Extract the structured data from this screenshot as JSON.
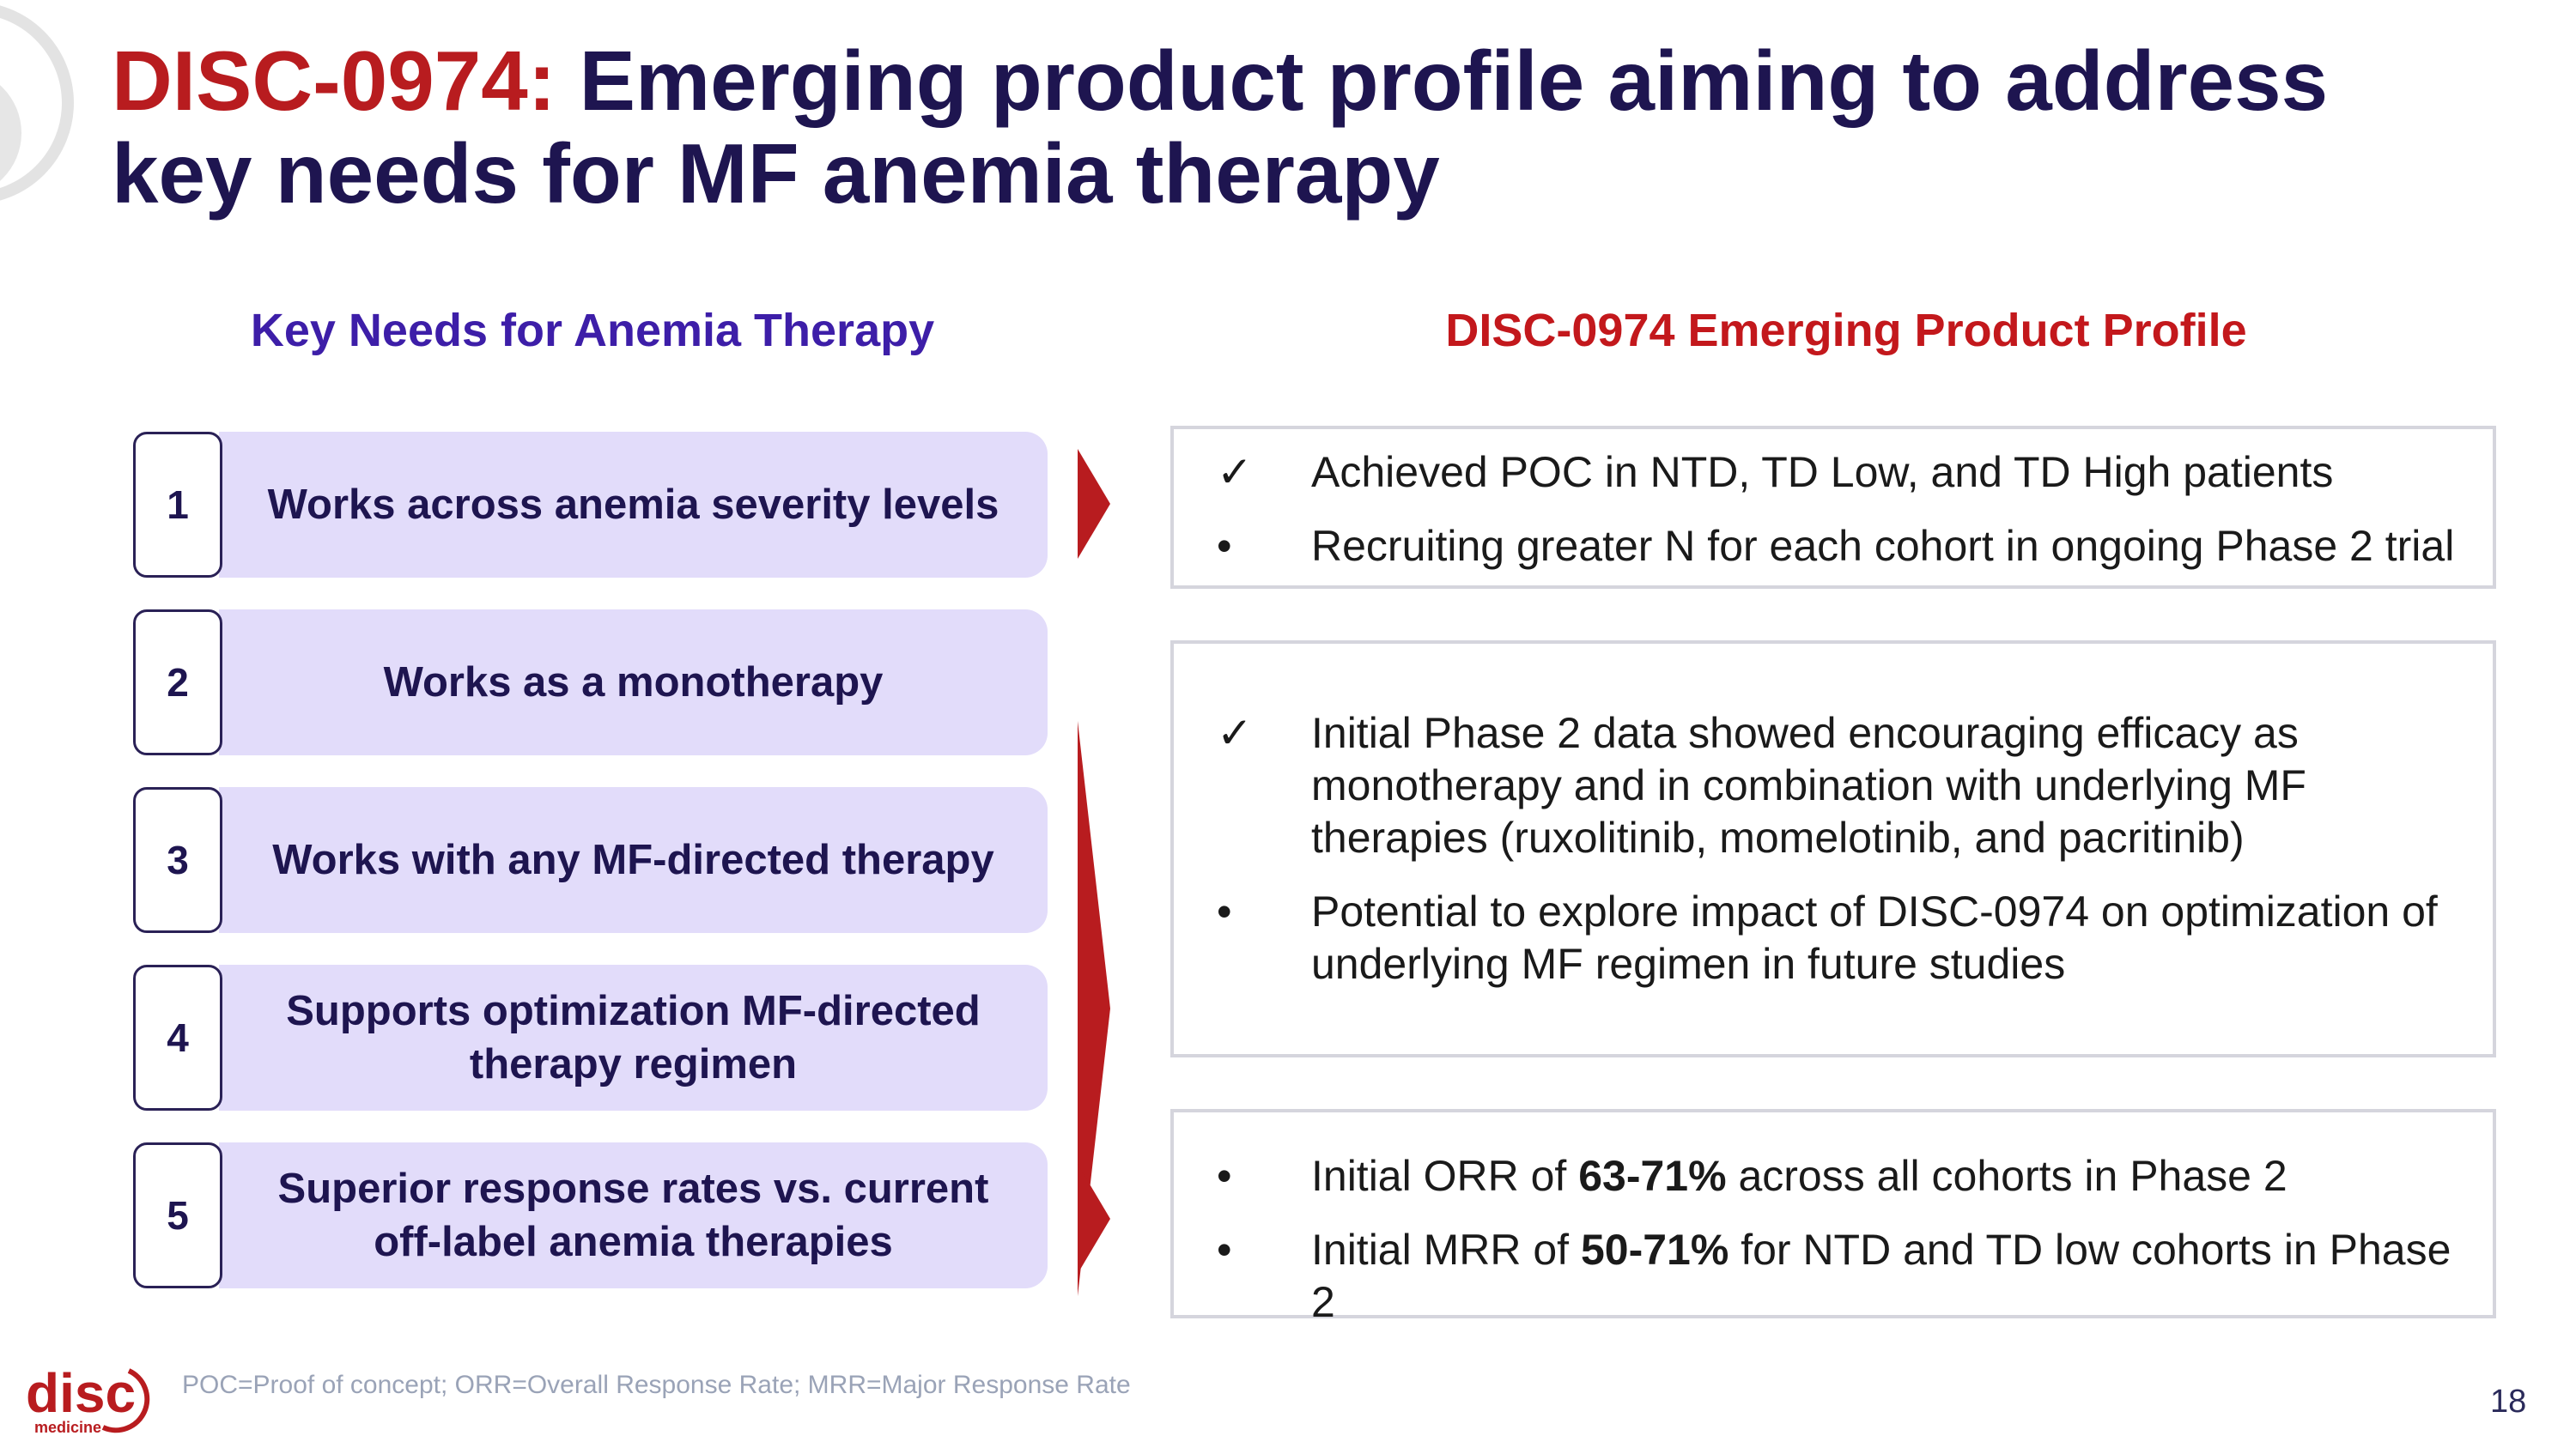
{
  "title": {
    "accent": "DISC-0974:",
    "rest_line1": " Emerging product profile aiming to address",
    "rest_line2": "key needs for MF anemia therapy"
  },
  "left_header": "Key Needs for Anemia Therapy",
  "right_header": "DISC-0974 Emerging Product Profile",
  "needs": [
    {
      "num": "1",
      "line1": "Works across anemia severity levels",
      "line2": ""
    },
    {
      "num": "2",
      "line1": "Works as a monotherapy",
      "line2": ""
    },
    {
      "num": "3",
      "line1": "Works with any MF-directed therapy",
      "line2": ""
    },
    {
      "num": "4",
      "line1": "Supports optimization MF-directed",
      "line2": "therapy regimen"
    },
    {
      "num": "5",
      "line1": "Superior response rates vs. current",
      "line2": "off-label anemia therapies"
    }
  ],
  "panels": {
    "p1": {
      "items": [
        {
          "mark": "✓",
          "text": "Achieved POC in NTD, TD Low, and TD High patients"
        },
        {
          "mark": "•",
          "text": "Recruiting greater N for each cohort in ongoing Phase 2 trial"
        }
      ]
    },
    "p2": {
      "items": [
        {
          "mark": "✓",
          "line1": "Initial Phase 2 data showed encouraging efficacy as",
          "line2": "monotherapy and in combination with underlying MF",
          "line3": "therapies (ruxolitinib, momelotinib, and pacritinib)"
        },
        {
          "mark": "•",
          "line1": "Potential to explore impact of DISC-0974 on optimization of",
          "line2": "underlying MF regimen in future studies"
        }
      ]
    },
    "p3": {
      "items": [
        {
          "mark": "•",
          "pre": "Initial ORR of ",
          "bold": "63-71%",
          "post": " across all cohorts in Phase 2"
        },
        {
          "mark": "•",
          "pre": "Initial MRR of ",
          "bold": "50-71%",
          "post": " for NTD and TD low cohorts in Phase 2"
        }
      ]
    }
  },
  "footnote": "POC=Proof of concept; ORR=Overall Response Rate; MRR=Major Response Rate",
  "page_number": "18",
  "logo": {
    "word": "disc",
    "sub": "medicine"
  },
  "colors": {
    "accent_red": "#b81c1f",
    "navy": "#1e1550",
    "purple": "#3d1ea8",
    "lavender": "#e2dcfa"
  }
}
